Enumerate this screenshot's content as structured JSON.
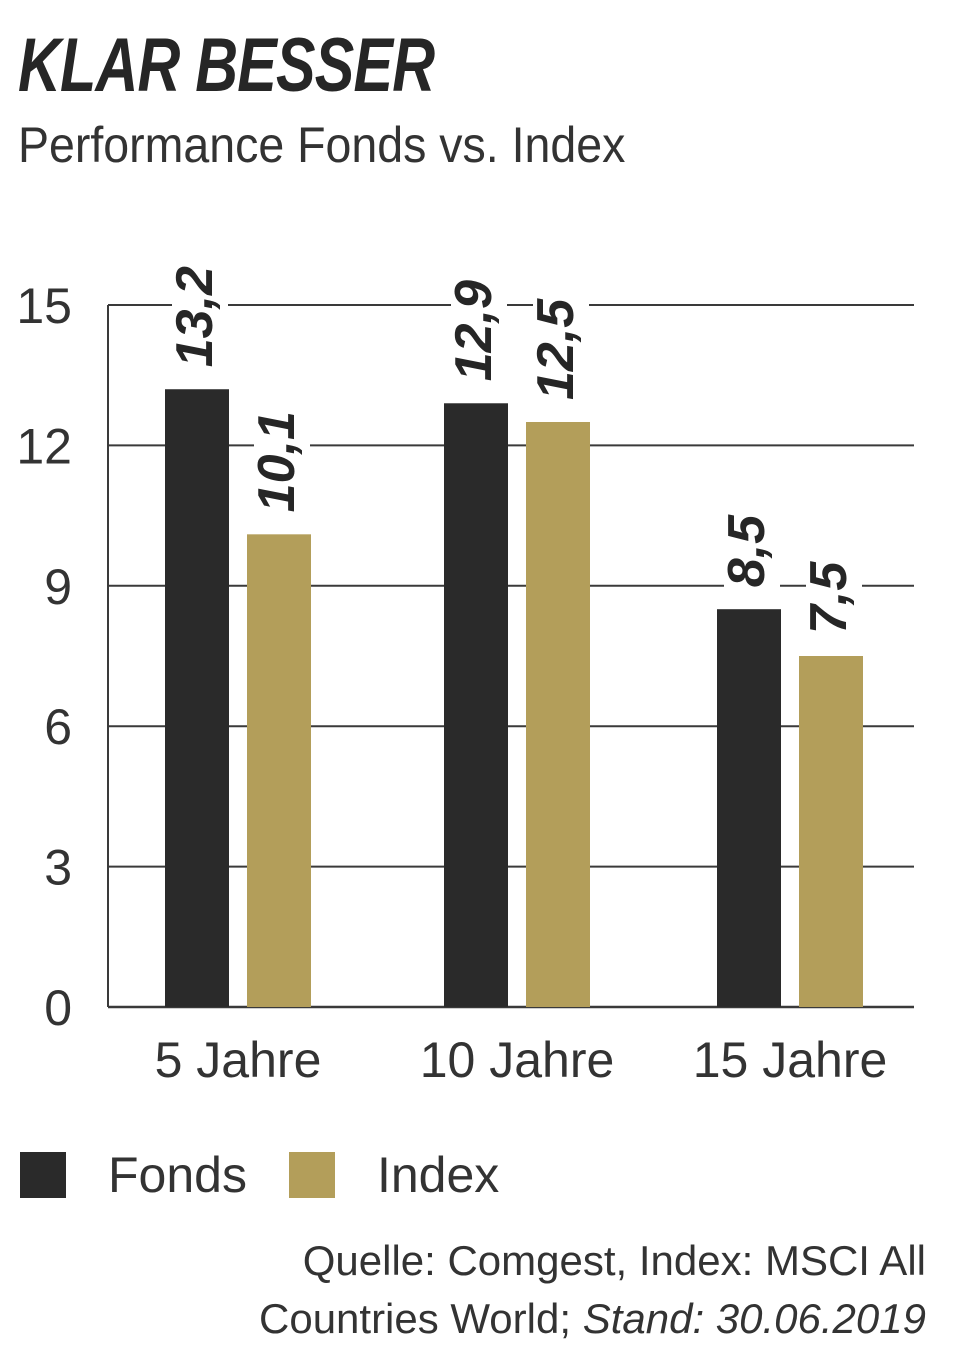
{
  "header": {
    "title": "KLAR BESSER",
    "subtitle": "Performance Fonds vs. Index"
  },
  "chart_data": {
    "type": "bar",
    "categories": [
      "5 Jahre",
      "10 Jahre",
      "15 Jahre"
    ],
    "series": [
      {
        "name": "Fonds",
        "color": "#2a2a2a",
        "values": [
          13.2,
          12.9,
          8.5
        ],
        "labels": [
          "13,2",
          "12,9",
          "8,5"
        ]
      },
      {
        "name": "Index",
        "color": "#b39e5a",
        "values": [
          10.1,
          12.5,
          7.5
        ],
        "labels": [
          "10,1",
          "12,5",
          "7,5"
        ]
      }
    ],
    "ylim": [
      0,
      15
    ],
    "yticks": [
      0,
      3,
      6,
      9,
      12,
      15
    ],
    "grid": true,
    "legend_placement": "bottom-left"
  },
  "legend": {
    "items": [
      {
        "label": "Fonds",
        "color": "#2a2a2a"
      },
      {
        "label": "Index",
        "color": "#b39e5a"
      }
    ]
  },
  "source": {
    "line1": "Quelle: Comgest, Index: MSCI All",
    "line2_prefix": "Countries World; ",
    "line2_italic": "Stand: 30.06.2019"
  }
}
